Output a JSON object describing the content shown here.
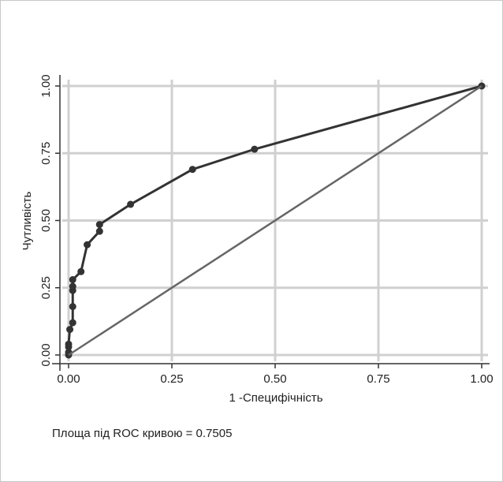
{
  "chart_data": {
    "type": "line",
    "title": "",
    "xlabel": "1 -Специфічність",
    "ylabel": "Чутливість",
    "xlim": [
      0,
      1
    ],
    "ylim": [
      0,
      1
    ],
    "x_ticks": [
      "0.00",
      "0.25",
      "0.50",
      "0.75",
      "1.00"
    ],
    "y_ticks": [
      "0.00",
      "0.25",
      "0.50",
      "0.75",
      "1.00"
    ],
    "grid": true,
    "series": [
      {
        "x": [
          0,
          0,
          0,
          0,
          0.003,
          0.01,
          0.01,
          0.01,
          0.01,
          0.01,
          0.03,
          0.045,
          0.075,
          0.075,
          0.15,
          0.3,
          0.45,
          1.0
        ],
        "y": [
          0,
          0.01,
          0.03,
          0.04,
          0.095,
          0.12,
          0.18,
          0.24,
          0.255,
          0.28,
          0.31,
          0.41,
          0.46,
          0.485,
          0.56,
          0.69,
          0.765,
          1.0
        ],
        "color": "#333333",
        "markers": true
      },
      {
        "x": [
          0,
          1
        ],
        "y": [
          0,
          1
        ],
        "color": "#666666",
        "markers": false
      }
    ],
    "annotation": "Площа під ROC кривою = 0.7505"
  }
}
